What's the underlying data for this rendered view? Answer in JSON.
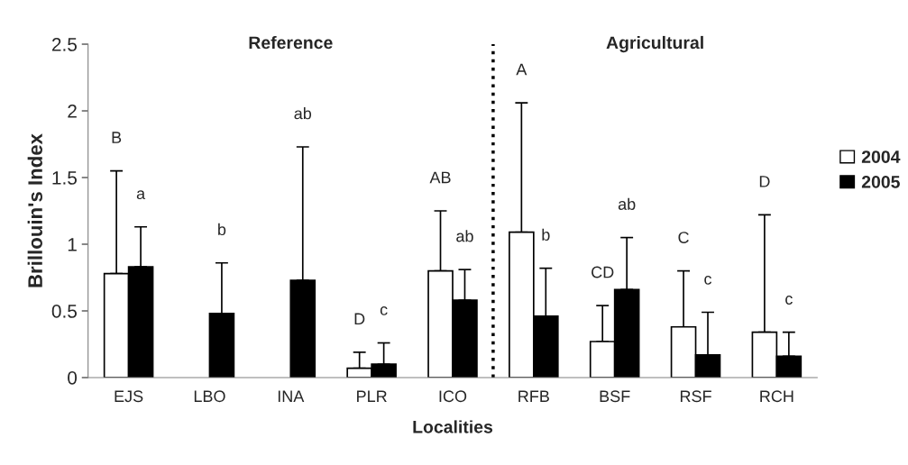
{
  "chart_data": {
    "type": "bar",
    "xlabel": "Localities",
    "ylabel": "Brillouin's Index",
    "categories": [
      "EJS",
      "LBO",
      "INA",
      "PLR",
      "ICO",
      "RFB",
      "BSF",
      "RSF",
      "RCH"
    ],
    "series": [
      {
        "name": "2004",
        "color": "#ffffff",
        "values": [
          0.78,
          null,
          null,
          0.07,
          0.8,
          1.09,
          0.27,
          0.38,
          0.34
        ],
        "errors": [
          [
            0.78,
            1.55
          ],
          null,
          null,
          [
            0.07,
            0.19
          ],
          [
            0.8,
            1.25
          ],
          [
            1.09,
            2.06
          ],
          [
            0.27,
            0.54
          ],
          [
            0.38,
            0.8
          ],
          [
            0.34,
            1.22
          ]
        ]
      },
      {
        "name": "2005",
        "color": "#000000",
        "values": [
          0.83,
          0.48,
          0.73,
          0.1,
          0.58,
          0.46,
          0.66,
          0.17,
          0.16
        ],
        "errors": [
          [
            0.83,
            1.13
          ],
          [
            0.48,
            0.86
          ],
          [
            0.73,
            1.73
          ],
          [
            0.1,
            0.26
          ],
          [
            0.58,
            0.81
          ],
          [
            0.46,
            0.82
          ],
          [
            0.66,
            1.05
          ],
          [
            0.17,
            0.49
          ],
          [
            0.16,
            0.34
          ]
        ]
      }
    ],
    "ylim": [
      0,
      2.5
    ],
    "yticks": [
      0,
      0.5,
      1,
      1.5,
      2,
      2.5
    ],
    "annotations": [
      "Reference",
      "Agricultural",
      "B",
      "a",
      "b",
      "ab",
      "D",
      "c",
      "AB",
      "ab",
      "A",
      "b",
      "CD",
      "ab",
      "C",
      "c",
      "D",
      "c"
    ],
    "legend": "right",
    "grid": false
  }
}
